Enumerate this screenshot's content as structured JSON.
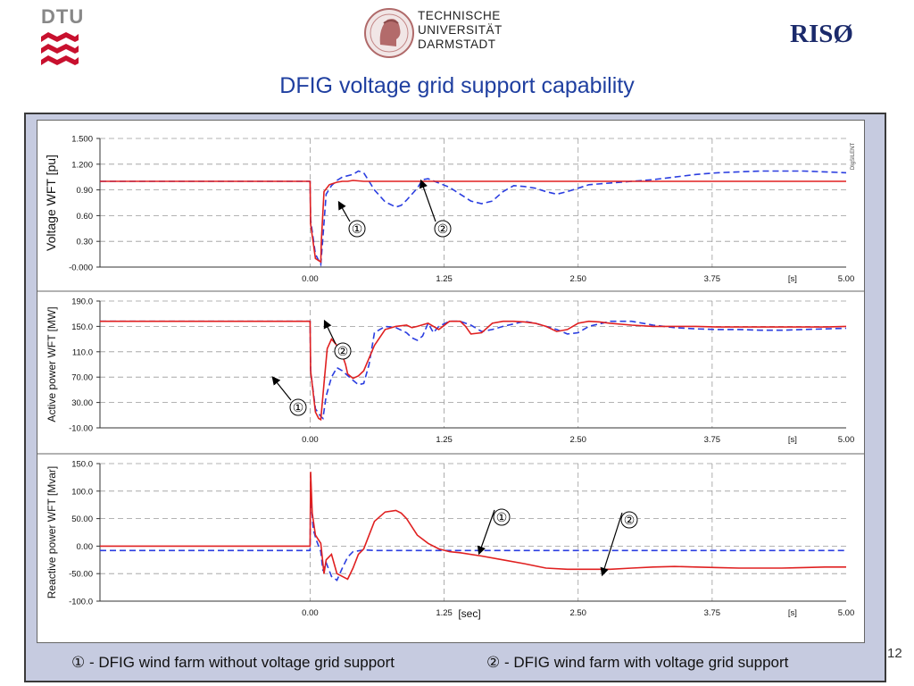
{
  "header": {
    "dtu_logo_text": "DTU",
    "tud_logo_lines": [
      "TECHNISCHE",
      "UNIVERSITÄT",
      "DARMSTADT"
    ],
    "riso_logo_text": "RISØ",
    "title": "DFIG voltage grid support capability"
  },
  "page_number": "12",
  "legend": {
    "item1_marker": "①",
    "item1_text": "-  DFIG wind farm without voltage grid support",
    "item2_marker": "②",
    "item2_text": "-  DFIG wind farm with voltage grid support"
  },
  "colors": {
    "without_support": "#2b3ee0",
    "with_support": "#e02020",
    "title": "#1f3fa0",
    "panel": "#c6cbe0"
  },
  "chart_data": [
    {
      "type": "line",
      "ylabel": "Voltage  WFT [pu]",
      "ylim": [
        0.0,
        1.5
      ],
      "yticks": [
        "1.500",
        "1.200",
        "0.90",
        "0.60",
        "0.30",
        "-0.000"
      ],
      "xlim": [
        -1.96,
        5.0
      ],
      "xticks": [
        "0.00",
        "1.25",
        "2.50",
        "3.75",
        "[s]",
        "5.00"
      ],
      "annotations": [
        "①",
        "②"
      ],
      "grid": true,
      "watermark": "DIgSILENT",
      "series": [
        {
          "line_style": "dashed",
          "color": "#2b3ee0",
          "x": [
            -1.96,
            0.0,
            0.005,
            0.05,
            0.1,
            0.12,
            0.15,
            0.2,
            0.25,
            0.3,
            0.4,
            0.45,
            0.5,
            0.55,
            0.6,
            0.7,
            0.8,
            0.85,
            0.9,
            1.0,
            1.05,
            1.1,
            1.2,
            1.3,
            1.4,
            1.5,
            1.6,
            1.7,
            1.8,
            1.9,
            2.0,
            2.1,
            2.2,
            2.3,
            2.4,
            2.5,
            2.6,
            2.8,
            3.0,
            3.2,
            3.4,
            3.6,
            3.8,
            4.0,
            4.2,
            4.4,
            4.6,
            4.8,
            5.0
          ],
          "y": [
            1.0,
            1.0,
            0.55,
            0.15,
            0.03,
            0.35,
            0.85,
            0.95,
            1.01,
            1.05,
            1.08,
            1.12,
            1.1,
            1.0,
            0.9,
            0.76,
            0.7,
            0.72,
            0.78,
            0.92,
            1.02,
            1.03,
            0.98,
            0.93,
            0.85,
            0.77,
            0.74,
            0.77,
            0.88,
            0.95,
            0.94,
            0.92,
            0.88,
            0.85,
            0.88,
            0.92,
            0.96,
            0.98,
            1.0,
            1.02,
            1.05,
            1.08,
            1.1,
            1.11,
            1.12,
            1.12,
            1.12,
            1.11,
            1.1
          ]
        },
        {
          "line_style": "solid",
          "color": "#e02020",
          "x": [
            -1.96,
            0.0,
            0.005,
            0.05,
            0.1,
            0.105,
            0.13,
            0.18,
            0.25,
            0.3,
            0.35,
            0.4,
            0.5,
            0.7,
            1.0,
            1.5,
            2.0,
            3.0,
            4.0,
            5.0
          ],
          "y": [
            1.0,
            1.0,
            0.5,
            0.1,
            0.06,
            0.3,
            0.88,
            0.96,
            0.99,
            1.0,
            1.0,
            1.01,
            1.0,
            1.0,
            1.0,
            1.0,
            1.0,
            1.0,
            1.0,
            1.0
          ]
        }
      ]
    },
    {
      "type": "line",
      "ylabel": "Active power WFT [MW]",
      "ylim": [
        -10.0,
        190.0
      ],
      "yticks": [
        "190.0",
        "150.0",
        "110.0",
        "70.00",
        "30.00",
        "-10.00"
      ],
      "xlim": [
        -1.96,
        5.0
      ],
      "xticks": [
        "0.00",
        "1.25",
        "2.50",
        "3.75",
        "[s]",
        "5.00"
      ],
      "annotations": [
        "②",
        "①"
      ],
      "grid": true,
      "series": [
        {
          "line_style": "dashed",
          "color": "#2b3ee0",
          "x": [
            -1.96,
            0.0,
            0.005,
            0.05,
            0.1,
            0.12,
            0.15,
            0.2,
            0.25,
            0.3,
            0.4,
            0.45,
            0.5,
            0.55,
            0.6,
            0.7,
            0.8,
            0.9,
            0.95,
            1.0,
            1.05,
            1.1,
            1.15,
            1.2,
            1.3,
            1.4,
            1.5,
            1.6,
            1.7,
            1.8,
            1.9,
            2.0,
            2.1,
            2.2,
            2.3,
            2.4,
            2.5,
            2.6,
            2.8,
            3.0,
            3.2,
            3.4,
            3.6,
            3.8,
            4.0,
            4.2,
            4.4,
            4.6,
            4.8,
            5.0
          ],
          "y": [
            158,
            158,
            80,
            20,
            8,
            5,
            40,
            70,
            85,
            80,
            65,
            58,
            60,
            90,
            140,
            150,
            148,
            140,
            132,
            128,
            135,
            155,
            140,
            150,
            158,
            158,
            152,
            142,
            145,
            150,
            154,
            158,
            155,
            150,
            145,
            138,
            140,
            150,
            158,
            158,
            152,
            148,
            146,
            145,
            145,
            144,
            144,
            145,
            146,
            147
          ]
        },
        {
          "line_style": "solid",
          "color": "#e02020",
          "x": [
            -1.96,
            0.0,
            0.005,
            0.05,
            0.08,
            0.1,
            0.13,
            0.16,
            0.2,
            0.25,
            0.3,
            0.33,
            0.35,
            0.4,
            0.45,
            0.5,
            0.6,
            0.7,
            0.8,
            0.9,
            0.95,
            1.0,
            1.1,
            1.2,
            1.3,
            1.4,
            1.45,
            1.5,
            1.6,
            1.7,
            1.8,
            1.9,
            2.0,
            2.1,
            2.2,
            2.3,
            2.4,
            2.5,
            2.6,
            2.7,
            2.8,
            3.0,
            3.2,
            3.4,
            3.6,
            3.8,
            4.0,
            4.2,
            4.4,
            4.6,
            4.8,
            5.0
          ],
          "y": [
            158,
            158,
            80,
            15,
            5,
            3,
            60,
            115,
            130,
            120,
            105,
            90,
            75,
            68,
            72,
            80,
            120,
            145,
            150,
            152,
            148,
            150,
            155,
            145,
            158,
            158,
            150,
            138,
            140,
            155,
            158,
            158,
            157,
            155,
            150,
            142,
            145,
            155,
            158,
            157,
            155,
            152,
            150,
            150,
            150,
            149,
            149,
            149,
            149,
            149,
            149,
            150
          ]
        }
      ]
    },
    {
      "type": "line",
      "ylabel": "Reactive power WFT [Mvar]",
      "ylim": [
        -100.0,
        150.0
      ],
      "yticks": [
        "150.0",
        "100.0",
        "50.00",
        "0.00",
        "-50.00",
        "-100.0"
      ],
      "xlim": [
        -1.96,
        5.0
      ],
      "xticks": [
        "0.00",
        "1.25",
        "2.50",
        "3.75",
        "[s]",
        "5.00"
      ],
      "xlabel": "[sec]",
      "annotations": [
        "①",
        "②"
      ],
      "grid": true,
      "series": [
        {
          "line_style": "dashed",
          "color": "#2b3ee0",
          "x": [
            -1.96,
            0.0,
            0.005,
            0.03,
            0.06,
            0.1,
            0.12,
            0.15,
            0.2,
            0.25,
            0.3,
            0.35,
            0.4,
            0.5,
            0.6,
            0.8,
            1.0,
            1.25,
            1.5,
            2.0,
            2.5,
            3.0,
            3.5,
            4.0,
            4.5,
            5.0
          ],
          "y": [
            -8,
            -8,
            95,
            30,
            10,
            -10,
            -45,
            -30,
            -55,
            -62,
            -40,
            -20,
            -10,
            -7,
            -8,
            -8,
            -8,
            -8,
            -8,
            -8,
            -8,
            -8,
            -8,
            -8,
            -8,
            -8
          ]
        },
        {
          "line_style": "solid",
          "color": "#e02020",
          "x": [
            -1.96,
            0.0,
            0.005,
            0.02,
            0.05,
            0.1,
            0.13,
            0.15,
            0.2,
            0.25,
            0.3,
            0.35,
            0.4,
            0.45,
            0.5,
            0.55,
            0.6,
            0.7,
            0.8,
            0.85,
            0.9,
            1.0,
            1.1,
            1.2,
            1.3,
            1.4,
            1.6,
            1.8,
            2.0,
            2.2,
            2.4,
            2.6,
            2.8,
            3.0,
            3.2,
            3.4,
            3.6,
            3.8,
            4.0,
            4.2,
            4.4,
            4.6,
            4.8,
            5.0
          ],
          "y": [
            0,
            0,
            135,
            60,
            20,
            5,
            -50,
            -25,
            -15,
            -50,
            -55,
            -60,
            -40,
            -15,
            -5,
            20,
            45,
            62,
            65,
            60,
            50,
            20,
            5,
            -5,
            -10,
            -12,
            -18,
            -25,
            -32,
            -40,
            -42,
            -42,
            -42,
            -40,
            -38,
            -37,
            -38,
            -39,
            -40,
            -40,
            -40,
            -39,
            -38,
            -38
          ]
        }
      ]
    }
  ]
}
